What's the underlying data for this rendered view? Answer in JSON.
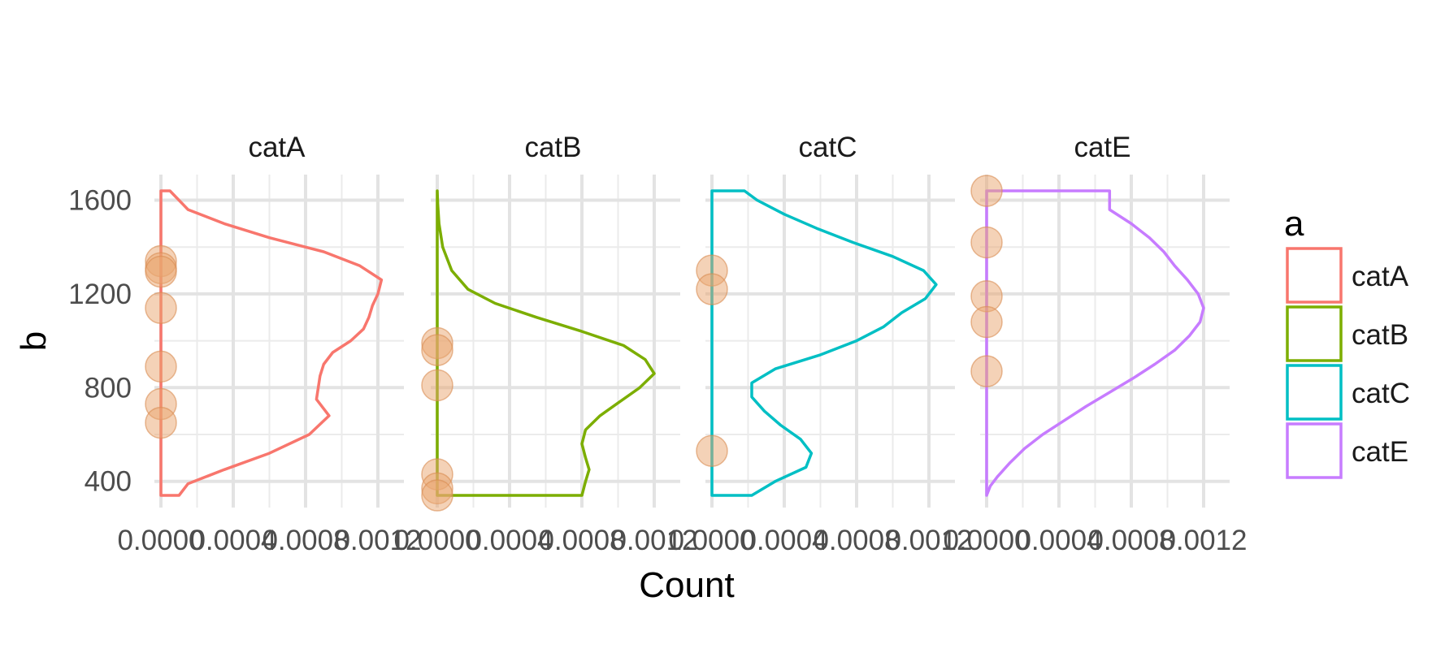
{
  "chart_data": {
    "type": "area",
    "facet_by": "a",
    "xlabel": "Count",
    "ylabel": "b",
    "legend_title": "a",
    "legend_position": "right",
    "grid": true,
    "xlim": [
      0,
      0.0012
    ],
    "ylim": [
      340,
      1640
    ],
    "x_ticks": [
      0.0,
      0.0004,
      0.0008,
      0.0012
    ],
    "x_tick_labels": [
      "0.0000",
      "0.0004",
      "0.0008",
      "0.0012"
    ],
    "y_ticks": [
      400,
      800,
      1200,
      1600
    ],
    "y_tick_labels": [
      "400",
      "800",
      "1200",
      "1600"
    ],
    "point_color": "#E9A56F",
    "panels": [
      {
        "name": "catA",
        "color": "#F8766D",
        "points_b": [
          1340,
          1310,
          1295,
          1140,
          890,
          730,
          650
        ],
        "density": {
          "b": [
            340,
            390,
            450,
            520,
            600,
            680,
            750,
            800,
            850,
            900,
            950,
            1000,
            1050,
            1100,
            1150,
            1200,
            1260,
            1320,
            1380,
            1440,
            1500,
            1560,
            1640
          ],
          "x": [
            0.0001,
            0.00015,
            0.00035,
            0.0006,
            0.00082,
            0.00093,
            0.00086,
            0.00087,
            0.00088,
            0.0009,
            0.00095,
            0.00105,
            0.00112,
            0.00115,
            0.00117,
            0.0012,
            0.00122,
            0.0011,
            0.0009,
            0.0006,
            0.00035,
            0.00015,
            5e-05
          ]
        }
      },
      {
        "name": "catB",
        "color": "#7CAE00",
        "points_b": [
          990,
          960,
          810,
          430,
          370,
          340
        ],
        "density": {
          "b": [
            340,
            400,
            450,
            500,
            560,
            620,
            680,
            740,
            800,
            860,
            920,
            980,
            1040,
            1100,
            1160,
            1220,
            1300,
            1400,
            1500,
            1580,
            1640
          ],
          "x": [
            0.0008,
            0.00082,
            0.00084,
            0.00082,
            0.0008,
            0.00082,
            0.0009,
            0.00101,
            0.00112,
            0.0012,
            0.00115,
            0.00103,
            0.0008,
            0.00055,
            0.00032,
            0.00017,
            8e-05,
            3e-05,
            1e-05,
            3e-06,
            0.0
          ]
        }
      },
      {
        "name": "catC",
        "color": "#00BFC4",
        "points_b": [
          1300,
          1220,
          530
        ],
        "density": {
          "b": [
            340,
            400,
            460,
            520,
            580,
            640,
            700,
            760,
            820,
            880,
            940,
            1000,
            1060,
            1120,
            1180,
            1240,
            1300,
            1360,
            1420,
            1480,
            1540,
            1600,
            1640
          ],
          "x": [
            0.00022,
            0.00035,
            0.00052,
            0.00055,
            0.00049,
            0.00038,
            0.00029,
            0.00022,
            0.00022,
            0.00035,
            0.0006,
            0.0008,
            0.00095,
            0.00105,
            0.00118,
            0.00124,
            0.00117,
            0.001,
            0.00078,
            0.00058,
            0.0004,
            0.00025,
            0.00018
          ]
        }
      },
      {
        "name": "catE",
        "color": "#C77CFF",
        "points_b": [
          1640,
          1420,
          1190,
          1080,
          870
        ],
        "density": {
          "b": [
            340,
            380,
            420,
            480,
            540,
            600,
            660,
            720,
            780,
            840,
            900,
            960,
            1020,
            1080,
            1140,
            1200,
            1260,
            1320,
            1380,
            1440,
            1500,
            1560,
            1640
          ],
          "x": [
            0.0,
            2e-05,
            6e-05,
            0.00013,
            0.00021,
            0.00031,
            0.00043,
            0.00055,
            0.00068,
            0.00081,
            0.00093,
            0.00104,
            0.00112,
            0.00118,
            0.0012,
            0.00117,
            0.00111,
            0.00104,
            0.00098,
            0.0009,
            0.0008,
            0.00068,
            0.00068
          ]
        }
      }
    ]
  }
}
